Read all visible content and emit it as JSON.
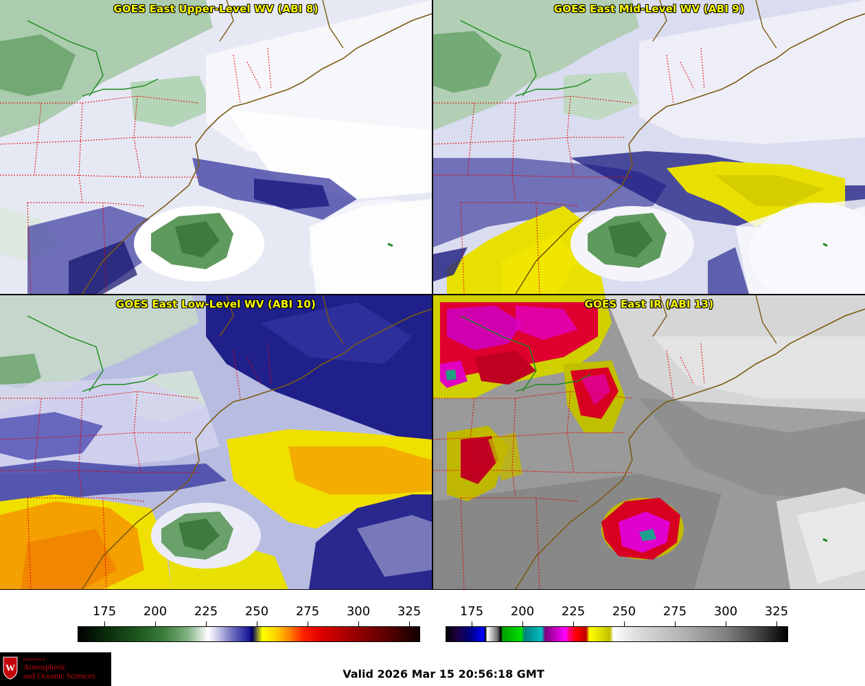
{
  "panels": {
    "upper": {
      "title": "GOES East Upper-Level WV (ABI 8)"
    },
    "mid": {
      "title": "GOES East Mid-Level WV (ABI 9)"
    },
    "low": {
      "title": "GOES East Low-Level WV (ABI 10)"
    },
    "ir": {
      "title": "GOES East IR (ABI 13)"
    }
  },
  "colorbars": {
    "wv": {
      "ticks": [
        "175",
        "200",
        "225",
        "250",
        "275",
        "300",
        "325"
      ]
    },
    "ir": {
      "ticks": [
        "175",
        "200",
        "225",
        "250",
        "275",
        "300",
        "325"
      ]
    }
  },
  "valid_time": "Valid 2026 Mar 15 20:56:18 GMT",
  "logo": {
    "dept": "Department of",
    "line1": "Atmospheric",
    "line2": "and Oceanic Sciences",
    "shield_letter": "W"
  },
  "colors": {
    "title_text": "#ffff00",
    "state_borders": "#e00000",
    "coastlines": "#7a5a10",
    "border_green": "#1a8a1a",
    "logo_red": "#c5050c"
  }
}
